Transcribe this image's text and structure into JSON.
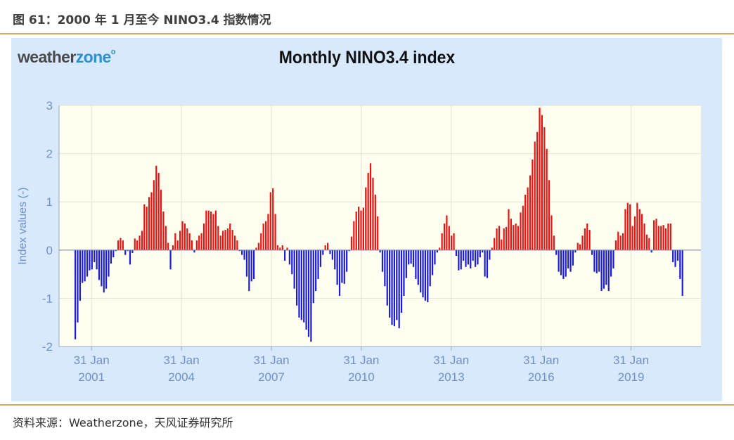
{
  "figure_title": "图 61：2000 年 1 月至今 NINO3.4 指数情况",
  "source_note": "资料来源：Weatherzone，天风证券研究所",
  "logo": {
    "part1": "weather",
    "part2": "zone",
    "mark": "o"
  },
  "colors": {
    "positive": "#ee1111",
    "negative": "#1c1cd8",
    "plot_bg": "#fffff0",
    "panel_bg": "#d7e9fb",
    "axis_text": "#6f8fcf",
    "zero_line": "#6f8fcf"
  },
  "chart_data": {
    "type": "bar",
    "title": "Monthly NINO3.4 index",
    "ylabel": "Index values (-)",
    "ylim": [
      -2,
      3
    ],
    "yticks": [
      -2,
      -1,
      0,
      1,
      2,
      3
    ],
    "grid": true,
    "x_start": "2000-01",
    "x_end": "2021-05",
    "x_tick_labels": [
      {
        "line1": "31 Jan",
        "line2": "2001",
        "date": "2001-01-31"
      },
      {
        "line1": "31 Jan",
        "line2": "2004",
        "date": "2004-01-31"
      },
      {
        "line1": "31 Jan",
        "line2": "2007",
        "date": "2007-01-31"
      },
      {
        "line1": "31 Jan",
        "line2": "2010",
        "date": "2010-01-31"
      },
      {
        "line1": "31 Jan",
        "line2": "2013",
        "date": "2013-01-31"
      },
      {
        "line1": "31 Jan",
        "line2": "2016",
        "date": "2016-01-31"
      },
      {
        "line1": "31 Jan",
        "line2": "2019",
        "date": "2019-01-31"
      }
    ],
    "values": [
      -1.85,
      -1.5,
      -1.05,
      -0.68,
      -0.65,
      -0.55,
      -0.42,
      -0.4,
      -0.25,
      -0.4,
      -0.62,
      -0.75,
      -0.88,
      -0.8,
      -0.55,
      -0.28,
      -0.15,
      -0.02,
      0.2,
      0.25,
      0.2,
      -0.1,
      -0.02,
      -0.3,
      -0.06,
      0.24,
      0.2,
      0.3,
      0.4,
      0.95,
      0.9,
      1.1,
      1.2,
      1.45,
      1.75,
      1.6,
      1.25,
      0.8,
      0.5,
      0.15,
      -0.4,
      0.1,
      0.35,
      0.2,
      0.4,
      0.6,
      0.55,
      0.45,
      0.35,
      0.2,
      -0.05,
      0.2,
      0.3,
      0.35,
      0.55,
      0.82,
      0.82,
      0.8,
      0.75,
      0.82,
      0.5,
      0.3,
      0.4,
      0.42,
      0.45,
      0.55,
      0.42,
      0.3,
      0.2,
      -0.02,
      -0.1,
      -0.2,
      -0.55,
      -0.85,
      -0.65,
      -0.6,
      0.05,
      0.15,
      0.35,
      0.55,
      0.6,
      0.75,
      1.2,
      1.28,
      0.75,
      0.1,
      0.05,
      0.1,
      -0.22,
      0.05,
      -0.3,
      -0.5,
      -0.8,
      -1.15,
      -1.4,
      -1.45,
      -1.5,
      -1.65,
      -1.8,
      -1.9,
      -1.1,
      -0.85,
      -0.6,
      -0.35,
      -0.1,
      0.1,
      0.15,
      -0.08,
      -0.2,
      -0.4,
      -0.72,
      -0.95,
      -0.68,
      -0.7,
      -0.45,
      -0.02,
      0.28,
      0.6,
      0.8,
      0.9,
      0.82,
      0.88,
      1.3,
      1.6,
      1.8,
      1.5,
      1.15,
      0.7,
      -0.05,
      -0.45,
      -0.75,
      -1.15,
      -1.4,
      -1.55,
      -1.58,
      -1.45,
      -1.62,
      -1.3,
      -0.95,
      -0.58,
      -0.3,
      -0.28,
      -0.35,
      -0.6,
      -0.72,
      -0.88,
      -0.98,
      -1.05,
      -1.08,
      -0.75,
      -0.52,
      -0.3,
      -0.05,
      0.05,
      0.35,
      0.55,
      0.72,
      0.5,
      0.3,
      0.35,
      -0.12,
      -0.42,
      -0.4,
      -0.22,
      -0.35,
      -0.3,
      -0.38,
      -0.22,
      -0.35,
      -0.3,
      -0.15,
      -0.05,
      -0.55,
      -0.58,
      -0.2,
      0.05,
      0.25,
      0.45,
      0.5,
      0.22,
      0.45,
      0.48,
      0.85,
      0.65,
      0.52,
      0.55,
      0.5,
      0.78,
      0.92,
      1.15,
      1.3,
      1.55,
      1.88,
      2.25,
      2.45,
      2.95,
      2.8,
      2.55,
      2.1,
      1.45,
      0.72,
      0.3,
      -0.1,
      -0.45,
      -0.52,
      -0.6,
      -0.55,
      -0.38,
      -0.45,
      -0.32,
      -0.05,
      0.15,
      0.12,
      0.3,
      0.45,
      0.55,
      0.42,
      -0.1,
      -0.45,
      -0.48,
      -0.45,
      -0.85,
      -0.8,
      -0.72,
      -0.85,
      -0.55,
      -0.38,
      0.2,
      0.38,
      0.3,
      0.35,
      0.85,
      0.98,
      0.95,
      0.5,
      0.7,
      0.98,
      0.85,
      0.75,
      0.55,
      0.32,
      0.25,
      -0.05,
      0.62,
      0.65,
      0.5,
      0.5,
      0.52,
      0.45,
      0.55,
      0.55,
      -0.25,
      -0.35,
      -0.22,
      -0.6,
      -0.95
    ]
  }
}
